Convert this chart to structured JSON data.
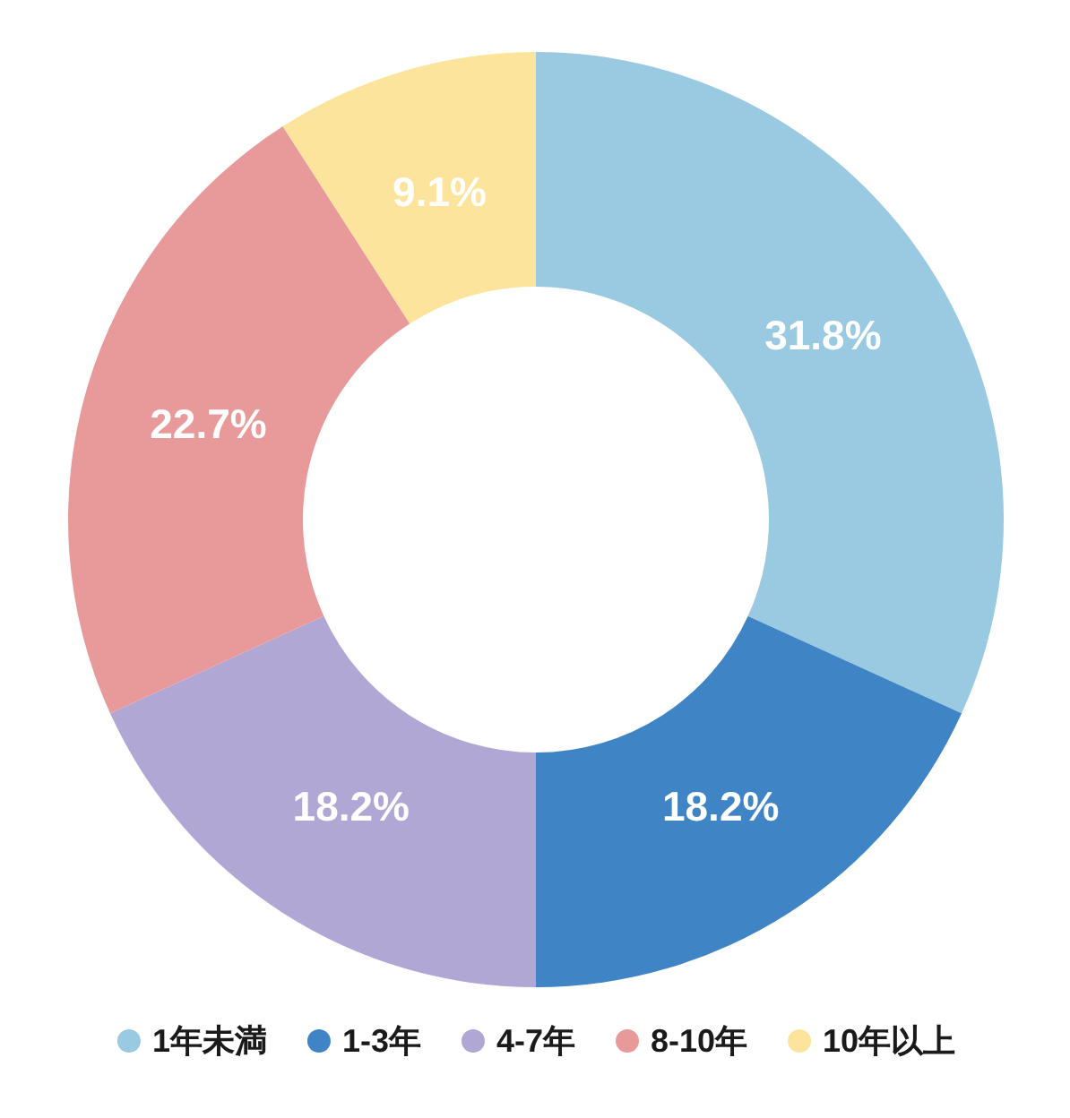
{
  "chart_data": {
    "type": "donut",
    "categories": [
      "1年未満",
      "1-3年",
      "4-7年",
      "8-10年",
      "10年以上"
    ],
    "values": [
      31.8,
      18.2,
      18.2,
      22.7,
      9.1
    ],
    "colors": [
      "#99cae1",
      "#3f85c5",
      "#b1a7d5",
      "#e89a9a",
      "#fde49c"
    ],
    "value_labels": [
      "31.8%",
      "18.2%",
      "18.2%",
      "22.7%",
      "9.1%"
    ],
    "legend": "bottom"
  }
}
